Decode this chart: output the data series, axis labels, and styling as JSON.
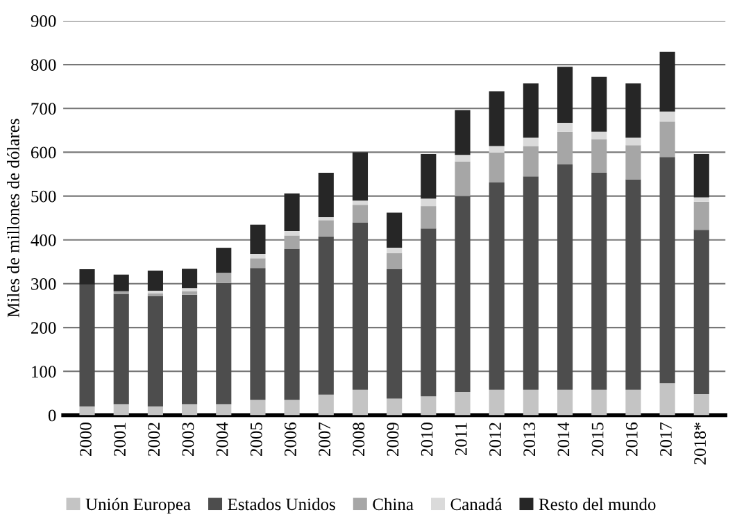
{
  "chart_data": {
    "type": "bar",
    "stacked": true,
    "ylabel": "Miles de millones de dólares",
    "categories": [
      "2000",
      "2001",
      "2002",
      "2003",
      "2004",
      "2005",
      "2006",
      "2007",
      "2008",
      "2009",
      "2010",
      "2011",
      "2012",
      "2013",
      "2014",
      "2015",
      "2016",
      "2017",
      "2018*"
    ],
    "series": [
      {
        "name": "Unión Europea",
        "color": "#c4c4c4",
        "values": [
          20,
          25,
          20,
          25,
          25,
          35,
          35,
          47,
          58,
          38,
          43,
          53,
          58,
          58,
          58,
          58,
          58,
          73,
          48
        ]
      },
      {
        "name": "Estados Unidos",
        "color": "#4d4d4d",
        "values": [
          277,
          252,
          252,
          250,
          277,
          301,
          345,
          361,
          382,
          296,
          383,
          447,
          473,
          487,
          515,
          495,
          480,
          516,
          375
        ]
      },
      {
        "name": "China",
        "color": "#a6a6a6",
        "values": [
          null,
          6,
          6,
          8,
          23,
          22,
          30,
          37,
          40,
          36,
          51,
          79,
          68,
          69,
          74,
          77,
          78,
          81,
          64
        ]
      },
      {
        "name": "Canadá",
        "color": "#dadada",
        "values": [
          null,
          null,
          6,
          7,
          null,
          10,
          10,
          7,
          10,
          12,
          17,
          15,
          15,
          19,
          20,
          17,
          17,
          23,
          10
        ]
      },
      {
        "name": "Resto del mundo",
        "color": "#262626",
        "values": [
          36,
          38,
          46,
          44,
          57,
          67,
          86,
          101,
          110,
          80,
          102,
          102,
          125,
          124,
          128,
          125,
          124,
          136,
          99
        ]
      }
    ],
    "ylim": [
      0,
      900
    ],
    "yticks": [
      0,
      100,
      200,
      300,
      400,
      500,
      600,
      700,
      800,
      900
    ],
    "grid": "y",
    "legend": "bottom"
  }
}
